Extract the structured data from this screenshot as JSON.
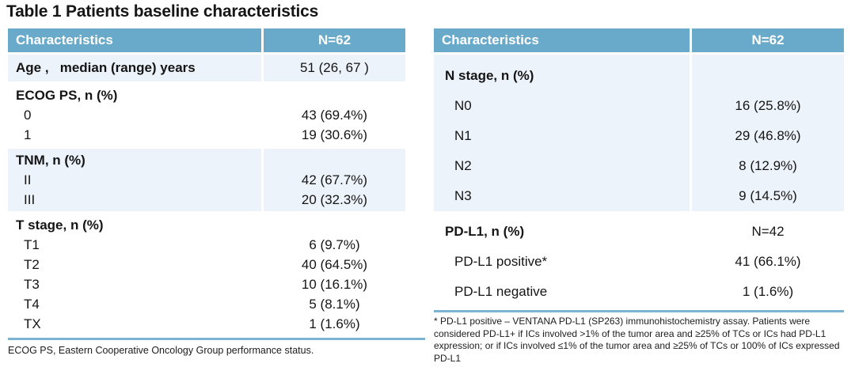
{
  "title": "Table 1 Patients baseline characteristics",
  "colors": {
    "header_bg": "#69A9C9",
    "shade_bg": "#EDF3FA",
    "rule": "#7CB3D2"
  },
  "left_table": {
    "header": {
      "label": "Characteristics",
      "value": "N=62"
    },
    "sections": [
      {
        "shade": true,
        "rows": [
          {
            "label": "Age ,   median (range) years",
            "value": "51 (26, 67 )",
            "bold": true
          }
        ]
      },
      {
        "shade": false,
        "rows": [
          {
            "label": "ECOG PS, n (%)",
            "value": "",
            "bold": true
          },
          {
            "label": "0",
            "value": "43 (69.4%)"
          },
          {
            "label": "1",
            "value": "19 (30.6%)"
          }
        ]
      },
      {
        "shade": true,
        "rows": [
          {
            "label": "TNM, n (%)",
            "value": "",
            "bold": true
          },
          {
            "label": "II",
            "value": "42 (67.7%)"
          },
          {
            "label": "III",
            "value": "20 (32.3%)"
          }
        ]
      },
      {
        "shade": false,
        "rows": [
          {
            "label": "T stage, n (%)",
            "value": "",
            "bold": true
          },
          {
            "label": "T1",
            "value": "6 (9.7%)"
          },
          {
            "label": "T2",
            "value": "40 (64.5%)"
          },
          {
            "label": "T3",
            "value": "10 (16.1%)"
          },
          {
            "label": "T4",
            "value": "5 (8.1%)"
          },
          {
            "label": "TX",
            "value": "1 (1.6%)"
          }
        ]
      }
    ],
    "footnote": "ECOG PS, Eastern Cooperative Oncology Group performance status."
  },
  "right_table": {
    "header": {
      "label": "Characteristics",
      "value": "N=62"
    },
    "sections": [
      {
        "shade": true,
        "rows": [
          {
            "label": "N stage, n (%)",
            "value": "",
            "bold": true
          },
          {
            "label": "N0",
            "value": "16 (25.8%)"
          },
          {
            "label": "N1",
            "value": "29 (46.8%)"
          },
          {
            "label": "N2",
            "value": "8 (12.9%)"
          },
          {
            "label": "N3",
            "value": "9 (14.5%)"
          }
        ]
      },
      {
        "shade": false,
        "rows": [
          {
            "label": "PD-L1, n (%)",
            "value": "N=42",
            "bold": true
          },
          {
            "label": "PD-L1 positive*",
            "value": "41 (66.1%)"
          },
          {
            "label": "PD-L1 negative",
            "value": "1 (1.6%)"
          }
        ]
      }
    ],
    "footnote": "* PD-L1 positive  – VENTANA PD-L1 (SP263) immunohistochemistry assay. Patients were considered PD-L1+ if ICs involved >1% of the tumor area and ≥25% of TCs or ICs had PD-L1 expression; or if ICs involved ≤1% of the tumor area and ≥25% of TCs or 100% of ICs expressed PD-L1"
  }
}
